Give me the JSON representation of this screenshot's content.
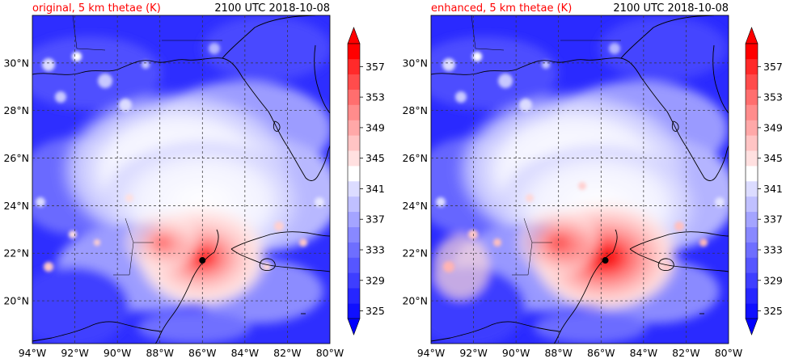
{
  "panels": [
    {
      "title_left": "original, 5 km thetae (K)",
      "title_right": "2100 UTC 2018-10-08",
      "center_marker": {
        "lon": -86.0,
        "lat": 21.7
      }
    },
    {
      "title_left": "enhanced, 5 km thetae (K)",
      "title_right": "2100 UTC 2018-10-08",
      "center_marker": {
        "lon": -85.8,
        "lat": 21.7
      }
    }
  ],
  "map": {
    "lon_range": [
      -94,
      -80
    ],
    "lat_range": [
      18.2,
      32
    ],
    "lon_ticks": [
      "94°W",
      "92°W",
      "90°W",
      "88°W",
      "86°W",
      "84°W",
      "82°W",
      "80°W"
    ],
    "lat_ticks": [
      "20°N",
      "22°N",
      "24°N",
      "26°N",
      "28°N",
      "30°N"
    ]
  },
  "colorbar": {
    "levels": [
      325,
      327,
      329,
      331,
      333,
      335,
      337,
      339,
      341,
      343,
      345,
      347,
      349,
      351,
      353,
      355,
      357
    ],
    "tick_labels": [
      "325",
      "329",
      "333",
      "337",
      "341",
      "345",
      "349",
      "353",
      "357"
    ],
    "colors": [
      "#1010ff",
      "#2626ff",
      "#3e3eff",
      "#5656ff",
      "#6e6eff",
      "#8888ff",
      "#a4a4ff",
      "#c0c0ff",
      "#dcdcff",
      "#ffffff",
      "#ffe0e0",
      "#ffc4c4",
      "#ffa8a8",
      "#ff8c8c",
      "#ff6e6e",
      "#ff4c4c",
      "#ff2a2a",
      "#ff0000"
    ],
    "extend_low_color": "#0000ff",
    "extend_high_color": "#ff0000"
  },
  "title_color_left": "#ff0000",
  "title_color_right": "#000000"
}
